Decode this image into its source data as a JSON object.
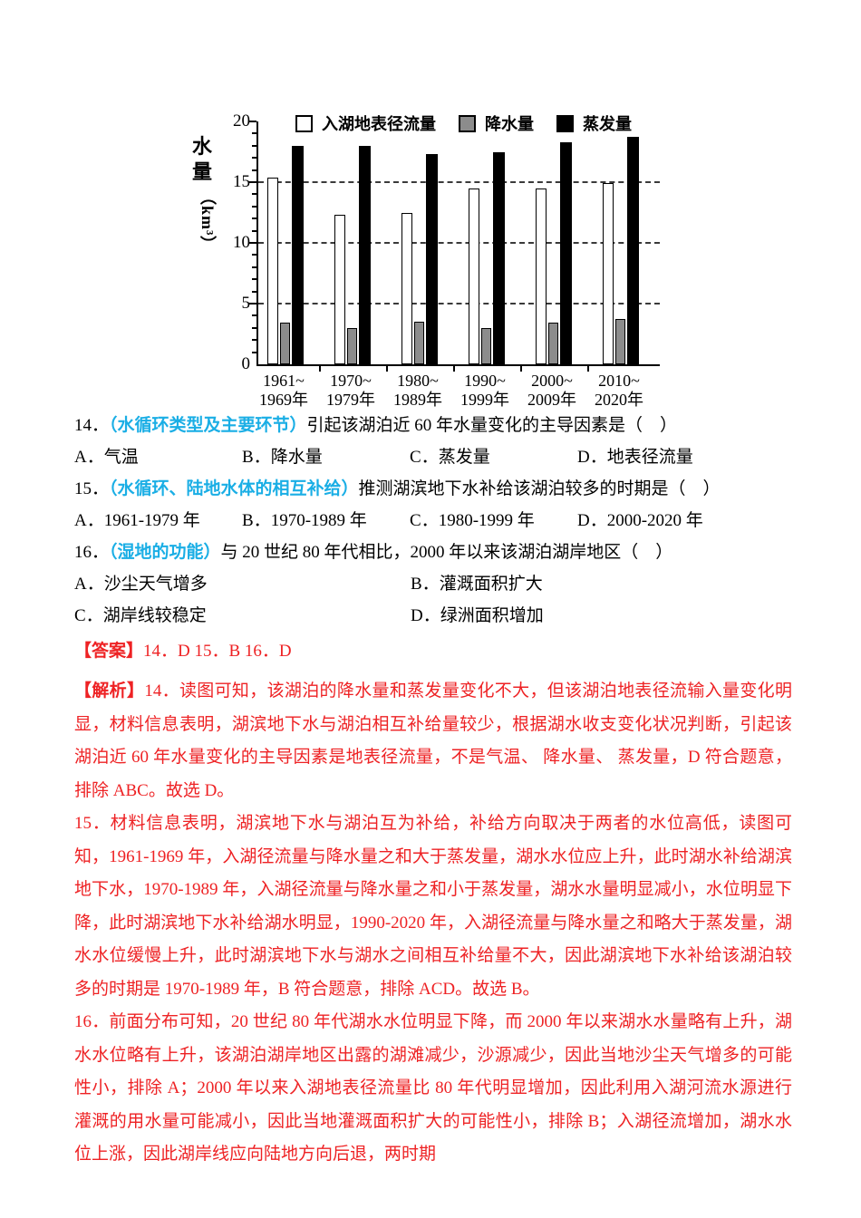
{
  "colors": {
    "tag_blue": "#1aaee5",
    "answer_red": "#ee2224",
    "bar_gray": "#8c8c8c",
    "text_black": "#000000"
  },
  "chart_data": {
    "type": "bar",
    "title": "",
    "ylabel": "水量（km³）",
    "ylabel_main": "水量",
    "ylabel_unit": "（km³）",
    "ylim": [
      0,
      20
    ],
    "yticks": [
      0,
      5,
      10,
      15,
      20
    ],
    "ytick_minor_interval": 1,
    "gridlines": [
      5,
      10,
      15
    ],
    "grid_style": "dashed",
    "legend_position": "top",
    "categories": [
      [
        "1961~",
        "1969年"
      ],
      [
        "1970~",
        "1979年"
      ],
      [
        "1980~",
        "1989年"
      ],
      [
        "1990~",
        "1999年"
      ],
      [
        "2000~",
        "2009年"
      ],
      [
        "2010~",
        "2020年"
      ]
    ],
    "series": [
      {
        "name": "入湖地表径流量",
        "color": "#ffffff",
        "border": "#000000",
        "values": [
          15.4,
          12.3,
          12.5,
          14.5,
          14.5,
          14.9
        ]
      },
      {
        "name": "降水量",
        "color": "#8c8c8c",
        "border": "#000000",
        "values": [
          3.4,
          3.0,
          3.5,
          3.0,
          3.4,
          3.7
        ]
      },
      {
        "name": "蒸发量",
        "color": "#000000",
        "border": "#000000",
        "values": [
          18.0,
          18.0,
          17.3,
          17.5,
          18.3,
          18.7
        ]
      }
    ]
  },
  "questions": [
    {
      "number": "14．",
      "tag": "（水循环类型及主要环节）",
      "stem": "引起该湖泊近 60 年水量变化的主导因素是（　）",
      "options": [
        {
          "label": "A．",
          "text": "气温"
        },
        {
          "label": "B．",
          "text": "降水量"
        },
        {
          "label": "C．",
          "text": "蒸发量"
        },
        {
          "label": "D．",
          "text": "地表径流量"
        }
      ]
    },
    {
      "number": "15．",
      "tag": "（水循环、陆地水体的相互补给）",
      "stem": "推测湖滨地下水补给该湖泊较多的时期是（　）",
      "options": [
        {
          "label": "A．",
          "text": "1961-1979 年"
        },
        {
          "label": "B．",
          "text": "1970-1989 年"
        },
        {
          "label": "C．",
          "text": "1980-1999 年"
        },
        {
          "label": "D．",
          "text": "2000-2020 年"
        }
      ]
    },
    {
      "number": "16．",
      "tag": "（湿地的功能）",
      "stem": "与 20 世纪 80 年代相比，2000 年以来该湖泊湖岸地区（　）",
      "options": [
        {
          "label": "A．",
          "text": "沙尘天气增多"
        },
        {
          "label": "B．",
          "text": "灌溉面积扩大"
        },
        {
          "label": "C．",
          "text": "湖岸线较稳定"
        },
        {
          "label": "D．",
          "text": "绿洲面积增加"
        }
      ]
    }
  ],
  "answer": {
    "prefix": "【答案】",
    "text": "14．D 15．B 16．D"
  },
  "analysis": {
    "prefix": "【解析】",
    "paragraphs": [
      "14．读图可知，该湖泊的降水量和蒸发量变化不大，但该湖泊地表径流输入量变化明显，材料信息表明，湖滨地下水与湖泊相互补给量较少，根据湖水收支变化状况判断，引起该湖泊近 60 年水量变化的主导因素是地表径流量，不是气温、 降水量、 蒸发量，D 符合题意，排除 ABC。故选 D。",
      "15．材料信息表明，湖滨地下水与湖泊互为补给，补给方向取决于两者的水位高低，读图可知，1961-1969 年，入湖径流量与降水量之和大于蒸发量，湖水水位应上升，此时湖水补给湖滨地下水，1970-1989 年，入湖径流量与降水量之和小于蒸发量，湖水水量明显减小，水位明显下降，此时湖滨地下水补给湖水明显，1990-2020 年，入湖径流量与降水量之和略大于蒸发量，湖水水位缓慢上升，此时湖滨地下水与湖水之间相互补给量不大，因此湖滨地下水补给该湖泊较多的时期是 1970-1989 年，B 符合题意，排除 ACD。故选 B。",
      "16．前面分布可知，20 世纪 80 年代湖水水位明显下降，而 2000 年以来湖水水量略有上升，湖水水位略有上升，该湖泊湖岸地区出露的湖滩减少，沙源减少，因此当地沙尘天气增多的可能性小，排除 A；2000 年以来入湖地表径流量比 80 年代明显增加，因此利用入湖河流水源进行灌溉的用水量可能减小，因此当地灌溉面积扩大的可能性小，排除 B；入湖径流增加，湖水水位上涨，因此湖岸线应向陆地方向后退，两时期"
    ]
  }
}
